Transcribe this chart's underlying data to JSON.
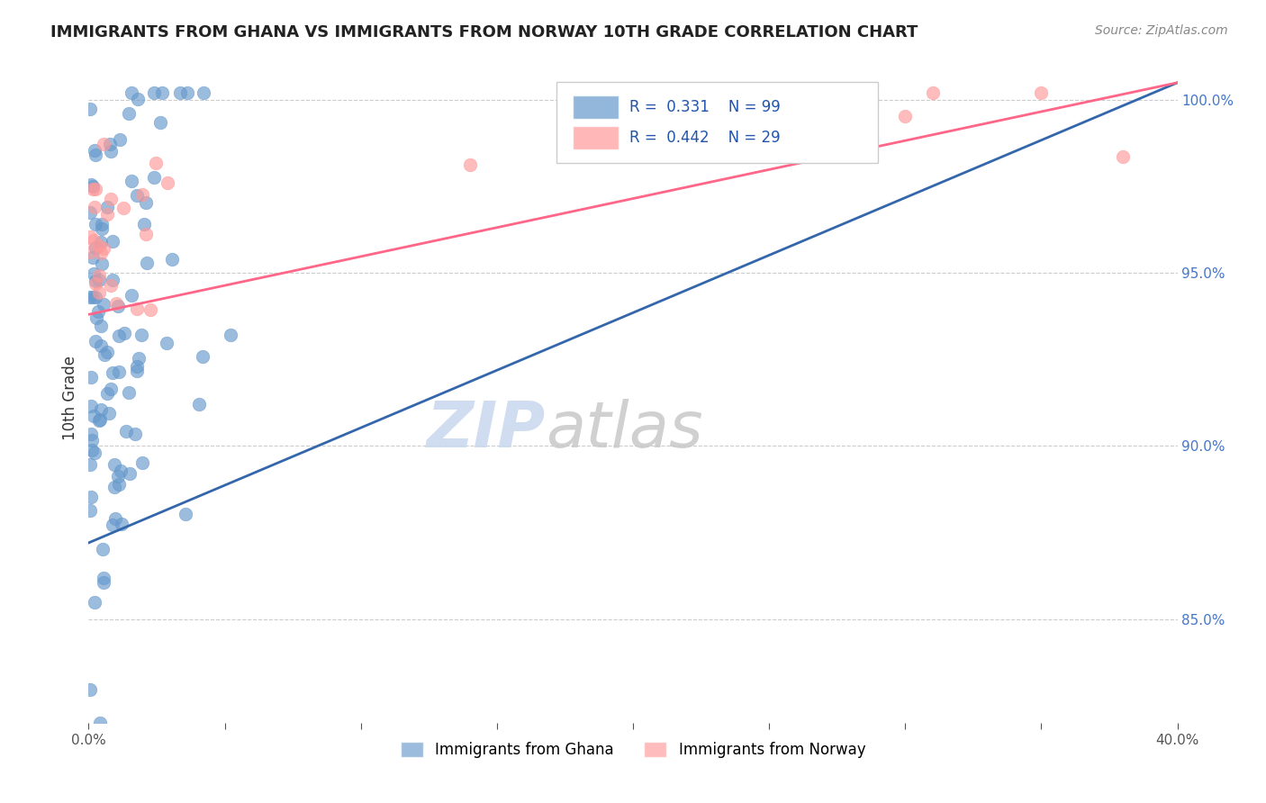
{
  "title": "IMMIGRANTS FROM GHANA VS IMMIGRANTS FROM NORWAY 10TH GRADE CORRELATION CHART",
  "source": "Source: ZipAtlas.com",
  "ylabel_label": "10th Grade",
  "x_min": 0.0,
  "x_max": 0.4,
  "y_min": 0.82,
  "y_max": 1.008,
  "x_ticks": [
    0.0,
    0.05,
    0.1,
    0.15,
    0.2,
    0.25,
    0.3,
    0.35,
    0.4
  ],
  "x_tick_labels": [
    "0.0%",
    "",
    "",
    "",
    "",
    "",
    "",
    "",
    "40.0%"
  ],
  "y_ticks": [
    0.85,
    0.9,
    0.95,
    1.0
  ],
  "y_tick_labels": [
    "85.0%",
    "90.0%",
    "95.0%",
    "100.0%"
  ],
  "ghana_color": "#6699cc",
  "norway_color": "#ff9999",
  "ghana_line_color": "#3366aa",
  "norway_line_color": "#ff6688",
  "ghana_R": 0.331,
  "ghana_N": 99,
  "norway_R": 0.442,
  "norway_N": 29,
  "watermark_zip": "ZIP",
  "watermark_atlas": "atlas",
  "legend_ghana": "Immigrants from Ghana",
  "legend_norway": "Immigrants from Norway",
  "ghana_line_x0": 0.0,
  "ghana_line_y0": 0.872,
  "ghana_line_x1": 0.4,
  "ghana_line_y1": 1.005,
  "norway_line_x0": 0.0,
  "norway_line_y0": 0.938,
  "norway_line_x1": 0.4,
  "norway_line_y1": 1.005
}
